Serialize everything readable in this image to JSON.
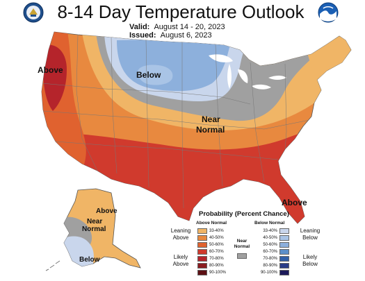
{
  "title": "8-14 Day Temperature Outlook",
  "valid_label": "Valid:",
  "valid_value": "August 14 - 20, 2023",
  "issued_label": "Issued:",
  "issued_value": "August 6, 2023",
  "map_labels": {
    "above_west": "Above",
    "below_north": "Below",
    "near_line1": "Near",
    "near_line2": "Normal",
    "above_florida": "Above",
    "alaska_above": "Above",
    "alaska_near1": "Near",
    "alaska_near2": "Normal",
    "alaska_below": "Below"
  },
  "legend": {
    "title": "Probability (Percent Chance)",
    "above_normal": "Above Normal",
    "below_normal": "Below Normal",
    "near_normal_1": "Near",
    "near_normal_2": "Normal",
    "leaning_above_1": "Leaning",
    "leaning_above_2": "Above",
    "likely_above_1": "Likely",
    "likely_above_2": "Above",
    "leaning_below_1": "Leaning",
    "leaning_below_2": "Below",
    "likely_below_1": "Likely",
    "likely_below_2": "Below",
    "above_ranges": [
      "33-40%",
      "40-50%",
      "50-60%",
      "60-70%",
      "70-80%",
      "80-90%",
      "90-100%"
    ],
    "below_ranges": [
      "33-40%",
      "40-50%",
      "50-60%",
      "60-70%",
      "70-80%",
      "80-90%",
      "90-100%"
    ],
    "above_colors": [
      "#f0b566",
      "#e8893f",
      "#e0622f",
      "#d03a2d",
      "#b5242b",
      "#8a1c20",
      "#5c1014"
    ],
    "below_colors": [
      "#c9d6ec",
      "#a9c4e6",
      "#8db0dc",
      "#5b8fca",
      "#2f5fa8",
      "#293c87",
      "#1c1a5a"
    ],
    "near_color": "#a0a0a0"
  }
}
